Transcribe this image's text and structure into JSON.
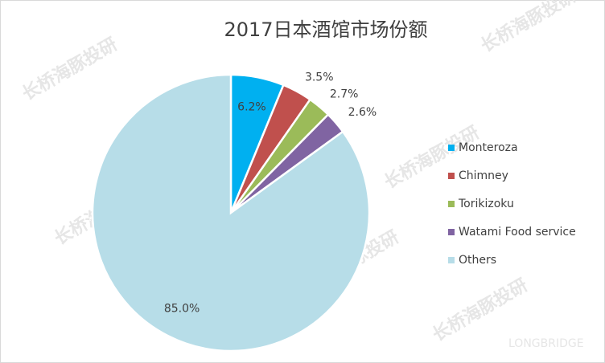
{
  "chart_data": {
    "type": "pie",
    "title": "2017日本酒馆市场份额",
    "categories": [
      "Monteroza",
      "Chimney",
      "Torikizoku",
      "Watami Food service",
      "Others"
    ],
    "values": [
      6.2,
      3.5,
      2.7,
      2.6,
      85.0
    ],
    "value_labels": [
      "6.2%",
      "3.5%",
      "2.7%",
      "2.6%",
      "85.0%"
    ],
    "colors": [
      "#00b0f0",
      "#c0504d",
      "#9bbb59",
      "#8064a2",
      "#b7dde8"
    ],
    "legend": "right"
  },
  "watermark": "长桥海豚投研",
  "brand": "LONGBRIDGE"
}
